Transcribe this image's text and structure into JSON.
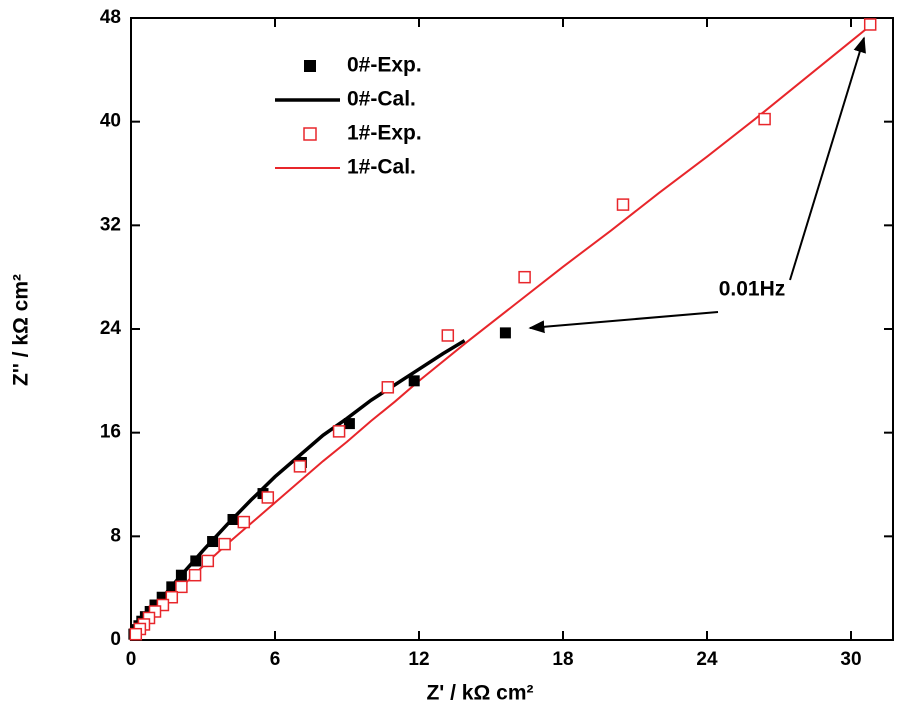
{
  "chart_data": {
    "type": "scatter",
    "xlabel": "Z' / kΩ cm²",
    "ylabel": "Z'' / kΩ cm²",
    "annotation": "0.01Hz",
    "xlim": [
      0,
      31.75
    ],
    "ylim": [
      0,
      48
    ],
    "xticks": [
      0,
      6,
      12,
      18,
      24,
      30
    ],
    "yticks": [
      0,
      8,
      16,
      24,
      32,
      40,
      48
    ],
    "legend": "upper left",
    "series": [
      {
        "name": "0#-Exp.",
        "color": "#000000",
        "mode": "markers",
        "filled": true,
        "x": [
          15.6,
          11.8,
          9.1,
          7.1,
          5.5,
          4.25,
          3.4,
          2.7,
          2.1,
          1.7,
          1.3,
          1.0,
          0.8,
          0.6,
          0.45,
          0.33,
          0.2,
          0.12
        ],
        "values": [
          23.7,
          20.0,
          16.7,
          13.7,
          11.3,
          9.3,
          7.6,
          6.1,
          5.0,
          4.1,
          3.3,
          2.7,
          2.2,
          1.8,
          1.45,
          1.1,
          0.8,
          0.45
        ]
      },
      {
        "name": "0#-Cal.",
        "color": "#000000",
        "mode": "line",
        "width": 3.5,
        "x": [
          0,
          1,
          2,
          3,
          4,
          5,
          6,
          7,
          8,
          9,
          10,
          11,
          12,
          13,
          13.9
        ],
        "values": [
          0,
          2.6,
          4.8,
          6.9,
          8.9,
          10.8,
          12.6,
          14.2,
          15.8,
          17.1,
          18.5,
          19.7,
          20.9,
          22.1,
          23.1
        ]
      },
      {
        "name": "1#-Exp.",
        "color": "#e8262b",
        "mode": "markers",
        "filled": false,
        "x": [
          30.8,
          26.4,
          20.5,
          16.4,
          13.2,
          10.7,
          8.67,
          7.04,
          5.7,
          4.7,
          3.9,
          3.2,
          2.67,
          2.1,
          1.7,
          1.33,
          1.0,
          0.75,
          0.54,
          0.37,
          0.2
        ],
        "values": [
          47.5,
          40.2,
          33.6,
          28.0,
          23.5,
          19.5,
          16.1,
          13.4,
          11.0,
          9.1,
          7.4,
          6.1,
          5.0,
          4.1,
          3.3,
          2.7,
          2.2,
          1.7,
          1.2,
          0.85,
          0.45
        ]
      },
      {
        "name": "1#-Cal.",
        "color": "#e8262b",
        "mode": "line",
        "width": 2,
        "x": [
          0,
          0.5,
          1,
          2,
          3,
          4,
          5,
          6,
          7,
          8,
          9,
          10,
          11,
          12,
          14,
          16,
          18,
          20,
          22,
          24,
          26,
          28,
          30,
          30.8
        ],
        "values": [
          0,
          1.0,
          2.0,
          3.9,
          5.7,
          7.4,
          9.0,
          10.6,
          12.2,
          13.8,
          15.3,
          16.9,
          18.4,
          20.0,
          23.0,
          25.9,
          28.8,
          31.6,
          34.5,
          37.3,
          40.2,
          43.2,
          46.2,
          47.4
        ]
      }
    ]
  }
}
